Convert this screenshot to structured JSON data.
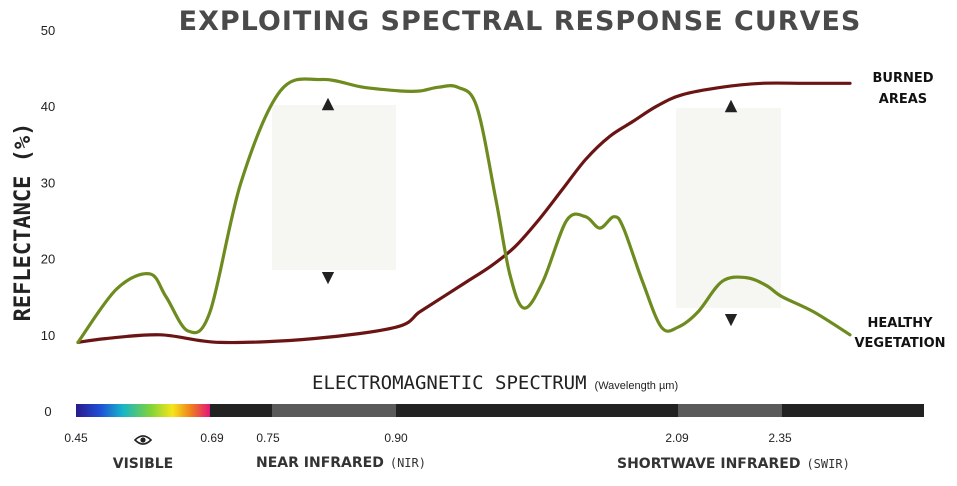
{
  "chart_data": {
    "type": "line",
    "title": "EXPLOITING SPECTRAL RESPONSE CURVES",
    "ylabel": "REFLECTANCE (%)",
    "ylim": [
      0,
      50
    ],
    "yticks": [
      50,
      40,
      30,
      20,
      10,
      0
    ],
    "grid": false,
    "series": [
      {
        "name": "HEALTHY VEGETATION",
        "color": "#6e8b1f",
        "x": [
          0.45,
          0.52,
          0.58,
          0.61,
          0.65,
          0.69,
          0.72,
          0.76,
          0.81,
          0.86,
          0.92,
          1.0,
          1.08,
          1.16,
          1.24,
          1.32,
          1.38,
          1.44,
          1.52,
          1.62,
          1.7,
          1.76,
          1.82,
          1.86,
          1.94,
          2.02,
          2.09,
          2.14,
          2.2,
          2.26,
          2.31,
          2.35,
          2.42,
          2.5
        ],
        "values": [
          9,
          16,
          18,
          15,
          10.5,
          13,
          30,
          42,
          43.5,
          42.5,
          42,
          42,
          42.5,
          42.5,
          40,
          28,
          18,
          13.5,
          17,
          25,
          25.5,
          24,
          25.5,
          24,
          17,
          11,
          11,
          13,
          17,
          17.5,
          16.5,
          15,
          13,
          10
        ]
      },
      {
        "name": "BURNED AREAS",
        "color": "#6b1414",
        "x": [
          0.45,
          0.5,
          0.6,
          0.7,
          0.8,
          0.9,
          1.0,
          1.1,
          1.2,
          1.3,
          1.4,
          1.5,
          1.6,
          1.7,
          1.8,
          1.9,
          2.0,
          2.1,
          2.2,
          2.3,
          2.4,
          2.5
        ],
        "values": [
          9,
          9.5,
          10,
          9,
          9.5,
          11,
          13,
          15,
          17,
          19,
          21.5,
          25,
          29,
          33,
          36,
          38,
          40,
          41.5,
          42.5,
          43,
          43,
          43
        ]
      }
    ],
    "annotations": {
      "burned": [
        "BURNED",
        "AREAS"
      ],
      "healthy": [
        "HEALTHY",
        "VEGETATION"
      ]
    },
    "spectrum": {
      "label": "ELECTROMAGNETIC SPECTRUM",
      "unit": "(Wavelength µm)",
      "wavelength_ticks": [
        "0.45",
        "0.69",
        "0.75",
        "0.90",
        "2.09",
        "2.35"
      ],
      "bands": [
        {
          "name": "VISIBLE",
          "abbr": ""
        },
        {
          "name": "NEAR INFRARED",
          "abbr": "(NIR)"
        },
        {
          "name": "SHORTWAVE INFRARED",
          "abbr": "(SWIR)"
        }
      ]
    },
    "icons": {
      "visible": "eye-icon"
    }
  }
}
